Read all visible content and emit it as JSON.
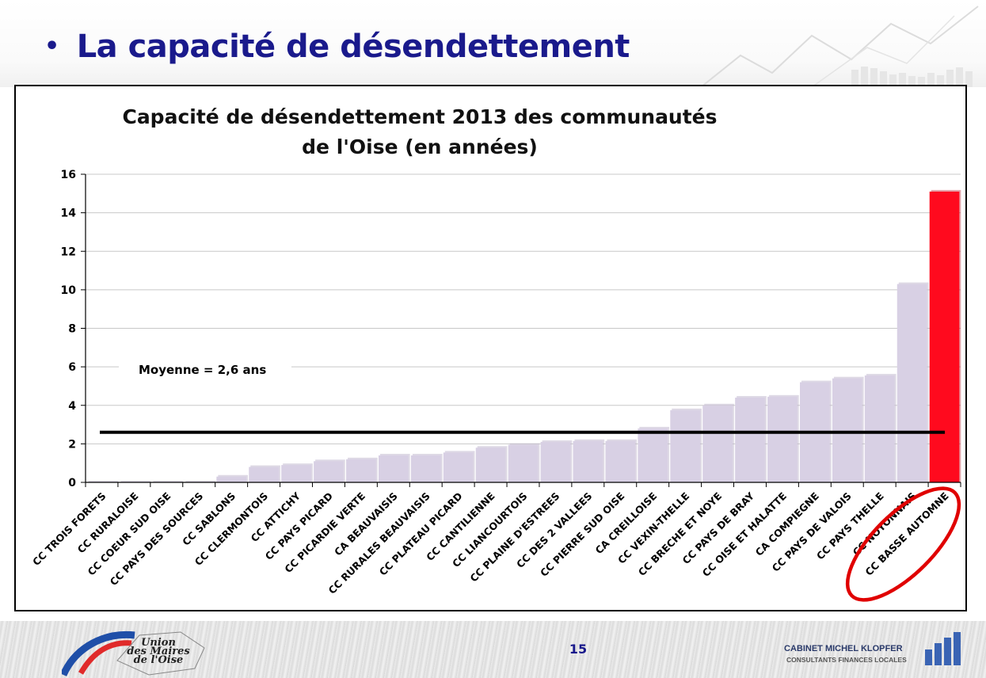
{
  "slide": {
    "bullet": "•",
    "title": "La capacité de désendettement",
    "page_number": "15"
  },
  "footer": {
    "logo_text_line1": "Union",
    "logo_text_line2": "des Maires",
    "logo_text_line3": "de l'Oise",
    "cabinet_name": "CABINET MICHEL KLOPFER",
    "cabinet_subtitle": "CONSULTANTS FINANCES LOCALES"
  },
  "colors": {
    "title_blue": "#1a1a8c",
    "bar_default": "#d8d0e4",
    "bar_highlight": "#ff0a1e",
    "mean_line": "#000000",
    "circle_annotation": "#e00000"
  },
  "chart_data": {
    "type": "bar",
    "title": "Capacité de désendettement 2013 des communautés de l'Oise (en années)",
    "xlabel": "",
    "ylabel": "",
    "ylim": [
      0,
      16
    ],
    "yticks": [
      0,
      2,
      4,
      6,
      8,
      10,
      12,
      14,
      16
    ],
    "grid": true,
    "categories": [
      "CC TROIS FORETS",
      "CC RURALOISE",
      "CC COEUR SUD OISE",
      "CC PAYS DES SOURCES",
      "CC SABLONS",
      "CC CLERMONTOIS",
      "CC ATTICHY",
      "CC PAYS PICARD",
      "CC PICARDIE VERTE",
      "CA BEAUVAISIS",
      "CC RURALES BEAUVAISIS",
      "CC PLATEAU PICARD",
      "CC CANTILIENNE",
      "CC LIANCOURTOIS",
      "CC PLAINE D'ESTREES",
      "CC DES 2 VALLEES",
      "CC PIERRE SUD OISE",
      "CA CREILLOISE",
      "CC VEXIN-THELLE",
      "CC BRECHE ET NOYE",
      "CC PAYS DE BRAY",
      "CC OISE ET HALATTE",
      "CA COMPIEGNE",
      "CC PAYS DE VALOIS",
      "CC PAYS THELLE",
      "CC NOYONNAIS",
      "CC BASSE AUTOMNE"
    ],
    "values": [
      0,
      0,
      0,
      0,
      0.3,
      0.8,
      0.9,
      1.1,
      1.2,
      1.4,
      1.4,
      1.55,
      1.8,
      1.95,
      2.1,
      2.15,
      2.15,
      2.8,
      3.75,
      4.0,
      4.4,
      4.45,
      5.2,
      5.4,
      5.55,
      10.3,
      15.1
    ],
    "highlight_index": 26,
    "mean": {
      "value": 2.6,
      "label": "Moyenne = 2,6 ans"
    },
    "annotation": "CC BASSE AUTOMNE circled in red"
  }
}
